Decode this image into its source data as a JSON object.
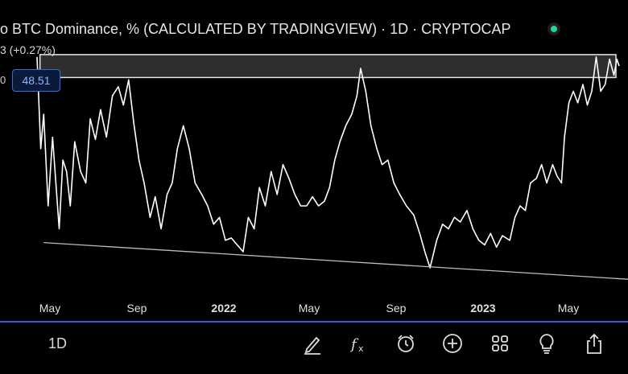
{
  "header": {
    "title": "o BTC Dominance, % (CALCULATED BY TRADINGVIEW) · 1D · CRYPTOCAP",
    "change": "3 (+0.27%)",
    "axis_fragment": "0",
    "price_badge": "48.51"
  },
  "colors": {
    "accent": "#2e62d8",
    "status": "#2bd39b",
    "line": "#ffffff",
    "background": "#000000"
  },
  "chart_data": {
    "type": "line",
    "title": "BTC Dominance, % (CALCULATED BY TRADINGVIEW) · 1D · CRYPTOCAP",
    "x_ticks": [
      "May",
      "Sep",
      "2022",
      "May",
      "Sep",
      "2023",
      "May"
    ],
    "x_range": [
      "2021-04-01",
      "2023-06-10"
    ],
    "y_range": [
      38.0,
      50.0
    ],
    "grid": false,
    "series": [
      {
        "values": [
          [
            "2021-04-01",
            48.5
          ],
          [
            "2021-04-06",
            44.5
          ],
          [
            "2021-04-10",
            46.0
          ],
          [
            "2021-04-16",
            42.0
          ],
          [
            "2021-04-22",
            45.0
          ],
          [
            "2021-05-01",
            41.0
          ],
          [
            "2021-05-06",
            44.0
          ],
          [
            "2021-05-11",
            43.5
          ],
          [
            "2021-05-16",
            42.0
          ],
          [
            "2021-05-22",
            44.8
          ],
          [
            "2021-05-30",
            43.5
          ],
          [
            "2021-06-06",
            43.0
          ],
          [
            "2021-06-12",
            45.8
          ],
          [
            "2021-06-19",
            44.9
          ],
          [
            "2021-06-26",
            46.2
          ],
          [
            "2021-07-04",
            45.0
          ],
          [
            "2021-07-12",
            46.8
          ],
          [
            "2021-07-20",
            47.2
          ],
          [
            "2021-07-27",
            46.4
          ],
          [
            "2021-08-03",
            47.5
          ],
          [
            "2021-08-10",
            45.6
          ],
          [
            "2021-08-17",
            44.0
          ],
          [
            "2021-08-24",
            43.0
          ],
          [
            "2021-09-01",
            41.5
          ],
          [
            "2021-09-08",
            42.4
          ],
          [
            "2021-09-16",
            41.0
          ],
          [
            "2021-09-24",
            42.5
          ],
          [
            "2021-10-01",
            43.0
          ],
          [
            "2021-10-08",
            44.5
          ],
          [
            "2021-10-16",
            45.5
          ],
          [
            "2021-10-24",
            44.5
          ],
          [
            "2021-11-01",
            43.0
          ],
          [
            "2021-11-10",
            42.5
          ],
          [
            "2021-11-18",
            42.0
          ],
          [
            "2021-11-26",
            41.2
          ],
          [
            "2021-12-04",
            41.5
          ],
          [
            "2021-12-12",
            40.5
          ],
          [
            "2021-12-20",
            40.6
          ],
          [
            "2021-12-28",
            40.3
          ],
          [
            "2022-01-05",
            40.0
          ],
          [
            "2022-01-12",
            41.5
          ],
          [
            "2022-01-20",
            41.0
          ],
          [
            "2022-01-27",
            42.8
          ],
          [
            "2022-02-04",
            42.0
          ],
          [
            "2022-02-12",
            43.5
          ],
          [
            "2022-02-20",
            42.5
          ],
          [
            "2022-02-28",
            43.8
          ],
          [
            "2022-03-08",
            43.2
          ],
          [
            "2022-03-16",
            42.5
          ],
          [
            "2022-03-24",
            42.0
          ],
          [
            "2022-04-01",
            42.0
          ],
          [
            "2022-04-09",
            42.4
          ],
          [
            "2022-04-17",
            42.0
          ],
          [
            "2022-04-25",
            42.2
          ],
          [
            "2022-05-02",
            42.8
          ],
          [
            "2022-05-09",
            44.0
          ],
          [
            "2022-05-16",
            44.8
          ],
          [
            "2022-05-24",
            45.5
          ],
          [
            "2022-06-01",
            46.0
          ],
          [
            "2022-06-08",
            46.8
          ],
          [
            "2022-06-13",
            48.0
          ],
          [
            "2022-06-20",
            47.0
          ],
          [
            "2022-06-27",
            45.5
          ],
          [
            "2022-07-05",
            44.5
          ],
          [
            "2022-07-12",
            43.8
          ],
          [
            "2022-07-20",
            44.0
          ],
          [
            "2022-07-28",
            43.0
          ],
          [
            "2022-08-05",
            42.5
          ],
          [
            "2022-08-14",
            42.0
          ],
          [
            "2022-08-24",
            41.6
          ],
          [
            "2022-09-01",
            40.8
          ],
          [
            "2022-09-08",
            40.0
          ],
          [
            "2022-09-15",
            39.3
          ],
          [
            "2022-09-24",
            40.5
          ],
          [
            "2022-10-02",
            41.2
          ],
          [
            "2022-10-10",
            41.0
          ],
          [
            "2022-10-18",
            41.5
          ],
          [
            "2022-10-26",
            41.3
          ],
          [
            "2022-11-04",
            41.8
          ],
          [
            "2022-11-12",
            41.0
          ],
          [
            "2022-11-20",
            40.5
          ],
          [
            "2022-11-28",
            40.3
          ],
          [
            "2022-12-06",
            40.8
          ],
          [
            "2022-12-14",
            40.2
          ],
          [
            "2022-12-22",
            40.7
          ],
          [
            "2023-01-01",
            40.5
          ],
          [
            "2023-01-08",
            41.5
          ],
          [
            "2023-01-15",
            42.0
          ],
          [
            "2023-01-22",
            41.8
          ],
          [
            "2023-01-29",
            43.0
          ],
          [
            "2023-02-06",
            43.2
          ],
          [
            "2023-02-13",
            43.8
          ],
          [
            "2023-02-20",
            43.0
          ],
          [
            "2023-02-28",
            43.8
          ],
          [
            "2023-03-06",
            43.3
          ],
          [
            "2023-03-12",
            43.0
          ],
          [
            "2023-03-16",
            45.0
          ],
          [
            "2023-03-22",
            46.5
          ],
          [
            "2023-03-28",
            47.0
          ],
          [
            "2023-04-03",
            46.5
          ],
          [
            "2023-04-10",
            47.3
          ],
          [
            "2023-04-16",
            46.4
          ],
          [
            "2023-04-22",
            47.0
          ],
          [
            "2023-04-28",
            48.5
          ],
          [
            "2023-05-04",
            47.0
          ],
          [
            "2023-05-10",
            47.3
          ],
          [
            "2023-05-16",
            48.4
          ],
          [
            "2023-05-22",
            47.7
          ],
          [
            "2023-05-26",
            48.4
          ],
          [
            "2023-05-29",
            48.1
          ]
        ]
      }
    ],
    "annotations": {
      "resistance_zone": {
        "x_start": "2021-04-05",
        "x_end": "2023-06-10",
        "y_low": 47.6,
        "y_high": 48.6
      },
      "support_trendline": {
        "start": [
          "2021-04-10",
          40.4
        ],
        "end": [
          "2023-06-10",
          38.8
        ]
      }
    }
  },
  "toolbar": {
    "interval": "1D",
    "tools": [
      {
        "name": "draw-icon",
        "glyph": "✎"
      },
      {
        "name": "indicators-icon",
        "glyph": "fx"
      },
      {
        "name": "alert-clock-icon",
        "glyph": "⏰"
      },
      {
        "name": "add-icon",
        "glyph": "+"
      },
      {
        "name": "layouts-grid-icon",
        "glyph": "▦"
      },
      {
        "name": "ideas-lightbulb-icon",
        "glyph": "💡"
      },
      {
        "name": "share-icon",
        "glyph": "⇪"
      }
    ]
  }
}
